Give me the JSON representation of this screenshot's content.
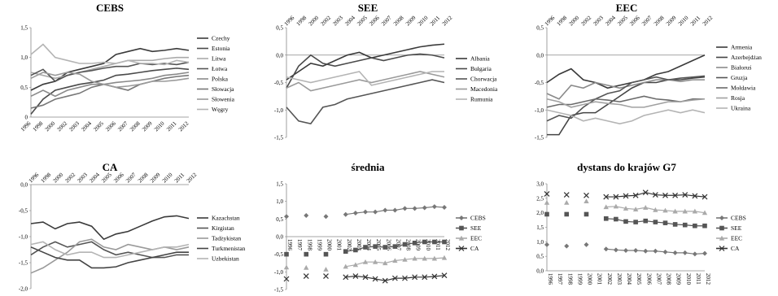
{
  "chart_data": [
    {
      "type": "line",
      "title": "CEBS",
      "x": [
        "1996",
        "1998",
        "2000",
        "2002",
        "2003",
        "2004",
        "2005",
        "2006",
        "2007",
        "2008",
        "2009",
        "2010",
        "2011",
        "2012"
      ],
      "ylim": [
        0,
        1.5
      ],
      "yticks": [
        "0",
        "0,5",
        "1,0",
        "1,5"
      ],
      "series": [
        {
          "name": "Czechy",
          "color": "#3a3a3a",
          "values": [
            0.45,
            0.55,
            0.6,
            0.75,
            0.8,
            0.85,
            0.9,
            1.05,
            1.1,
            1.15,
            1.1,
            1.12,
            1.15,
            1.12
          ]
        },
        {
          "name": "Estonia",
          "color": "#4a4a4a",
          "values": [
            0.05,
            0.3,
            0.45,
            0.5,
            0.55,
            0.58,
            0.62,
            0.7,
            0.72,
            0.75,
            0.78,
            0.8,
            0.82,
            0.8
          ]
        },
        {
          "name": "Litwa",
          "color": "#aaaaaa",
          "values": [
            0.75,
            0.7,
            0.65,
            0.7,
            0.75,
            0.8,
            0.85,
            0.9,
            0.95,
            0.95,
            0.95,
            0.98,
            1.0,
            1.0
          ]
        },
        {
          "name": "Łotwa",
          "color": "#555555",
          "values": [
            0.7,
            0.8,
            0.6,
            0.7,
            0.75,
            0.78,
            0.82,
            0.85,
            0.85,
            0.9,
            0.88,
            0.9,
            0.88,
            0.92
          ]
        },
        {
          "name": "Polska",
          "color": "#8a8a8a",
          "values": [
            0.35,
            0.45,
            0.35,
            0.45,
            0.5,
            0.55,
            0.55,
            0.58,
            0.6,
            0.62,
            0.65,
            0.7,
            0.72,
            0.75
          ]
        },
        {
          "name": "Słowacja",
          "color": "#777777",
          "values": [
            0.15,
            0.2,
            0.3,
            0.35,
            0.4,
            0.5,
            0.55,
            0.5,
            0.45,
            0.55,
            0.6,
            0.65,
            0.68,
            0.7
          ]
        },
        {
          "name": "Słowenia",
          "color": "#9a9a9a",
          "values": [
            0.65,
            0.75,
            0.7,
            0.75,
            0.72,
            0.6,
            0.55,
            0.5,
            0.52,
            0.55,
            0.6,
            0.6,
            0.62,
            0.65
          ]
        },
        {
          "name": "Węgry",
          "color": "#b4b4b4",
          "values": [
            1.05,
            1.22,
            1.0,
            0.95,
            0.9,
            0.9,
            0.92,
            0.9,
            0.95,
            0.9,
            0.9,
            0.88,
            0.95,
            0.92
          ]
        }
      ]
    },
    {
      "type": "line",
      "title": "SEE",
      "x": [
        "1996",
        "1998",
        "2000",
        "2002",
        "2003",
        "2004",
        "2005",
        "2006",
        "2007",
        "2008",
        "2009",
        "2010",
        "2011",
        "2012"
      ],
      "ylim": [
        -1.5,
        0.5
      ],
      "yticks": [
        "0,5",
        "0,0",
        "-0,5",
        "-1,0",
        "-1,5"
      ],
      "series": [
        {
          "name": "Albania",
          "color": "#3a3a3a",
          "values": [
            -0.45,
            -0.3,
            -0.15,
            -0.2,
            -0.1,
            0.0,
            0.05,
            -0.05,
            0.0,
            0.05,
            0.1,
            0.15,
            0.18,
            0.2
          ]
        },
        {
          "name": "Bułgaria",
          "color": "#4a4a4a",
          "values": [
            -0.6,
            -0.2,
            0.0,
            -0.15,
            -0.2,
            -0.15,
            -0.1,
            -0.05,
            -0.1,
            -0.05,
            0.0,
            0.02,
            0.0,
            -0.05
          ]
        },
        {
          "name": "Chorwacja",
          "color": "#555555",
          "values": [
            -0.95,
            -1.2,
            -1.25,
            -0.95,
            -0.9,
            -0.8,
            -0.75,
            -0.7,
            -0.65,
            -0.6,
            -0.55,
            -0.5,
            -0.45,
            -0.5
          ]
        },
        {
          "name": "Macedonia",
          "color": "#9a9a9a",
          "values": [
            -0.6,
            -0.5,
            -0.65,
            -0.6,
            -0.55,
            -0.5,
            -0.45,
            -0.5,
            -0.45,
            -0.4,
            -0.35,
            -0.3,
            -0.35,
            -0.4
          ]
        },
        {
          "name": "Rumunia",
          "color": "#b4b4b4",
          "values": [
            -0.4,
            -0.45,
            -0.5,
            -0.45,
            -0.4,
            -0.35,
            -0.3,
            -0.55,
            -0.5,
            -0.45,
            -0.4,
            -0.35,
            -0.3,
            -0.3
          ]
        }
      ]
    },
    {
      "type": "line",
      "title": "EEC",
      "x": [
        "1996",
        "1998",
        "2000",
        "2002",
        "2003",
        "2004",
        "2005",
        "2006",
        "2007",
        "2008",
        "2009",
        "2010",
        "2011",
        "2012"
      ],
      "ylim": [
        -1.5,
        0.5
      ],
      "yticks": [
        "0,5",
        "0,0",
        "-0,5",
        "-1,0",
        "-1,5"
      ],
      "series": [
        {
          "name": "Armenia",
          "color": "#3a3a3a",
          "values": [
            -0.5,
            -0.35,
            -0.25,
            -0.45,
            -0.5,
            -0.6,
            -0.55,
            -0.5,
            -0.45,
            -0.35,
            -0.3,
            -0.2,
            -0.1,
            0.0
          ]
        },
        {
          "name": "Azerbejdżan",
          "color": "#444444",
          "values": [
            -1.45,
            -1.45,
            -1.1,
            -1.05,
            -1.05,
            -0.9,
            -0.75,
            -0.6,
            -0.5,
            -0.5,
            -0.45,
            -0.45,
            -0.42,
            -0.4
          ]
        },
        {
          "name": "Białoruś",
          "color": "#8a8a8a",
          "values": [
            -0.7,
            -0.8,
            -0.55,
            -0.6,
            -0.5,
            -0.55,
            -0.6,
            -0.55,
            -0.5,
            -0.45,
            -0.45,
            -0.48,
            -0.45,
            -0.45
          ]
        },
        {
          "name": "Gruzja",
          "color": "#555555",
          "values": [
            -1.2,
            -1.1,
            -1.15,
            -0.95,
            -0.8,
            -0.7,
            -0.65,
            -0.5,
            -0.45,
            -0.4,
            -0.45,
            -0.42,
            -0.4,
            -0.38
          ]
        },
        {
          "name": "Mołdawia",
          "color": "#6a6a6a",
          "values": [
            -0.95,
            -0.9,
            -0.9,
            -0.85,
            -0.8,
            -0.82,
            -0.85,
            -0.8,
            -0.75,
            -0.8,
            -0.82,
            -0.85,
            -0.8,
            -0.8
          ]
        },
        {
          "name": "Rosja",
          "color": "#a0a0a0",
          "values": [
            -0.8,
            -0.85,
            -0.95,
            -0.9,
            -0.85,
            -0.88,
            -0.9,
            -0.95,
            -0.95,
            -0.9,
            -0.85,
            -0.85,
            -0.82,
            -0.8
          ]
        },
        {
          "name": "Ukraina",
          "color": "#b4b4b4",
          "values": [
            -1.0,
            -1.05,
            -1.1,
            -1.2,
            -1.15,
            -1.2,
            -1.25,
            -1.2,
            -1.1,
            -1.05,
            -1.0,
            -1.05,
            -1.0,
            -1.05
          ]
        }
      ]
    },
    {
      "type": "line",
      "title": "CA",
      "x": [
        "1996",
        "1998",
        "2000",
        "2002",
        "2003",
        "2004",
        "2005",
        "2006",
        "2007",
        "2008",
        "2009",
        "2010",
        "2011",
        "2012"
      ],
      "ylim": [
        -2.0,
        0.0
      ],
      "yticks": [
        "0,0",
        "-0,5",
        "-1,0",
        "-1,5",
        "-2,0"
      ],
      "series": [
        {
          "name": "Kazachstan",
          "color": "#3a3a3a",
          "values": [
            -0.75,
            -0.72,
            -0.85,
            -0.75,
            -0.72,
            -0.8,
            -1.05,
            -0.95,
            -0.9,
            -0.8,
            -0.7,
            -0.62,
            -0.6,
            -0.65
          ]
        },
        {
          "name": "Kirgistan",
          "color": "#555555",
          "values": [
            -1.35,
            -1.2,
            -1.1,
            -1.2,
            -1.15,
            -1.1,
            -1.25,
            -1.35,
            -1.3,
            -1.35,
            -1.4,
            -1.4,
            -1.35,
            -1.35
          ]
        },
        {
          "name": "Tadżykistan",
          "color": "#9a9a9a",
          "values": [
            -1.7,
            -1.6,
            -1.45,
            -1.3,
            -1.1,
            -1.05,
            -1.2,
            -1.25,
            -1.15,
            -1.2,
            -1.25,
            -1.2,
            -1.25,
            -1.2
          ]
        },
        {
          "name": "Turkmenistan",
          "color": "#444444",
          "values": [
            -1.2,
            -1.3,
            -1.4,
            -1.45,
            -1.45,
            -1.6,
            -1.6,
            -1.58,
            -1.5,
            -1.45,
            -1.4,
            -1.35,
            -1.3,
            -1.3
          ]
        },
        {
          "name": "Uzbekistan",
          "color": "#b4b4b4",
          "values": [
            -1.15,
            -1.1,
            -1.25,
            -1.35,
            -1.3,
            -1.3,
            -1.4,
            -1.4,
            -1.35,
            -1.3,
            -1.25,
            -1.2,
            -1.2,
            -1.15
          ]
        }
      ]
    },
    {
      "type": "line",
      "title": "średnia",
      "x": [
        "1996",
        "1997",
        "1998",
        "1999",
        "2000",
        "2001",
        "2002",
        "2003",
        "2004",
        "2005",
        "2006",
        "2007",
        "2008",
        "2009",
        "2010",
        "2011",
        "2012"
      ],
      "ylim": [
        -1.5,
        1.5
      ],
      "yticks": [
        "1,5",
        "1,0",
        "0,5",
        "0,0",
        "-0,5",
        "-1,0",
        "-1,5"
      ],
      "series": [
        {
          "name": "CEBS",
          "color": "#777777",
          "marker": "diamond",
          "values": [
            0.57,
            null,
            0.6,
            null,
            0.57,
            null,
            0.63,
            0.67,
            0.7,
            0.7,
            0.75,
            0.75,
            0.8,
            0.8,
            0.82,
            0.85,
            0.83
          ]
        },
        {
          "name": "SEE",
          "color": "#555555",
          "marker": "square",
          "values": [
            -0.5,
            null,
            -0.5,
            null,
            -0.5,
            null,
            -0.42,
            -0.38,
            -0.3,
            -0.28,
            -0.3,
            -0.28,
            -0.22,
            -0.18,
            -0.15,
            -0.15,
            -0.15
          ]
        },
        {
          "name": "EEC",
          "color": "#aaaaaa",
          "marker": "triangle",
          "values": [
            -0.87,
            null,
            -0.88,
            null,
            -0.93,
            null,
            -0.85,
            -0.8,
            -0.72,
            -0.72,
            -0.75,
            -0.68,
            -0.65,
            -0.62,
            -0.62,
            -0.62,
            -0.6
          ]
        },
        {
          "name": "CA",
          "color": "#333333",
          "marker": "x",
          "values": [
            -1.2,
            null,
            -1.12,
            null,
            -1.12,
            null,
            -1.15,
            -1.12,
            -1.15,
            -1.2,
            -1.25,
            -1.18,
            -1.18,
            -1.15,
            -1.15,
            -1.13,
            -1.1
          ]
        }
      ]
    },
    {
      "type": "line",
      "title": "dystans do krajów G7",
      "x": [
        "1996",
        "1997",
        "1998",
        "1999",
        "2000",
        "2001",
        "2002",
        "2003",
        "2004",
        "2005",
        "2006",
        "2007",
        "2008",
        "2009",
        "2010",
        "2011",
        "2012"
      ],
      "ylim": [
        0.0,
        3.0
      ],
      "yticks": [
        "3,0",
        "2,5",
        "2,0",
        "1,5",
        "1,0",
        "0,5",
        "0,0"
      ],
      "series": [
        {
          "name": "CEBS",
          "color": "#777777",
          "marker": "diamond",
          "values": [
            0.9,
            null,
            0.85,
            null,
            0.9,
            null,
            0.75,
            0.72,
            0.7,
            0.7,
            0.68,
            0.68,
            0.65,
            0.62,
            0.62,
            0.58,
            0.6
          ]
        },
        {
          "name": "SEE",
          "color": "#555555",
          "marker": "square",
          "values": [
            1.95,
            null,
            1.95,
            null,
            1.95,
            null,
            1.8,
            1.78,
            1.7,
            1.68,
            1.72,
            1.68,
            1.65,
            1.6,
            1.58,
            1.55,
            1.55
          ]
        },
        {
          "name": "EEC",
          "color": "#aaaaaa",
          "marker": "triangle",
          "values": [
            2.35,
            null,
            2.35,
            null,
            2.4,
            null,
            2.2,
            2.22,
            2.15,
            2.12,
            2.18,
            2.1,
            2.08,
            2.05,
            2.05,
            2.05,
            2.0
          ]
        },
        {
          "name": "CA",
          "color": "#333333",
          "marker": "x",
          "values": [
            2.65,
            null,
            2.62,
            null,
            2.6,
            null,
            2.55,
            2.55,
            2.58,
            2.6,
            2.7,
            2.62,
            2.6,
            2.6,
            2.62,
            2.58,
            2.55
          ]
        }
      ]
    }
  ]
}
